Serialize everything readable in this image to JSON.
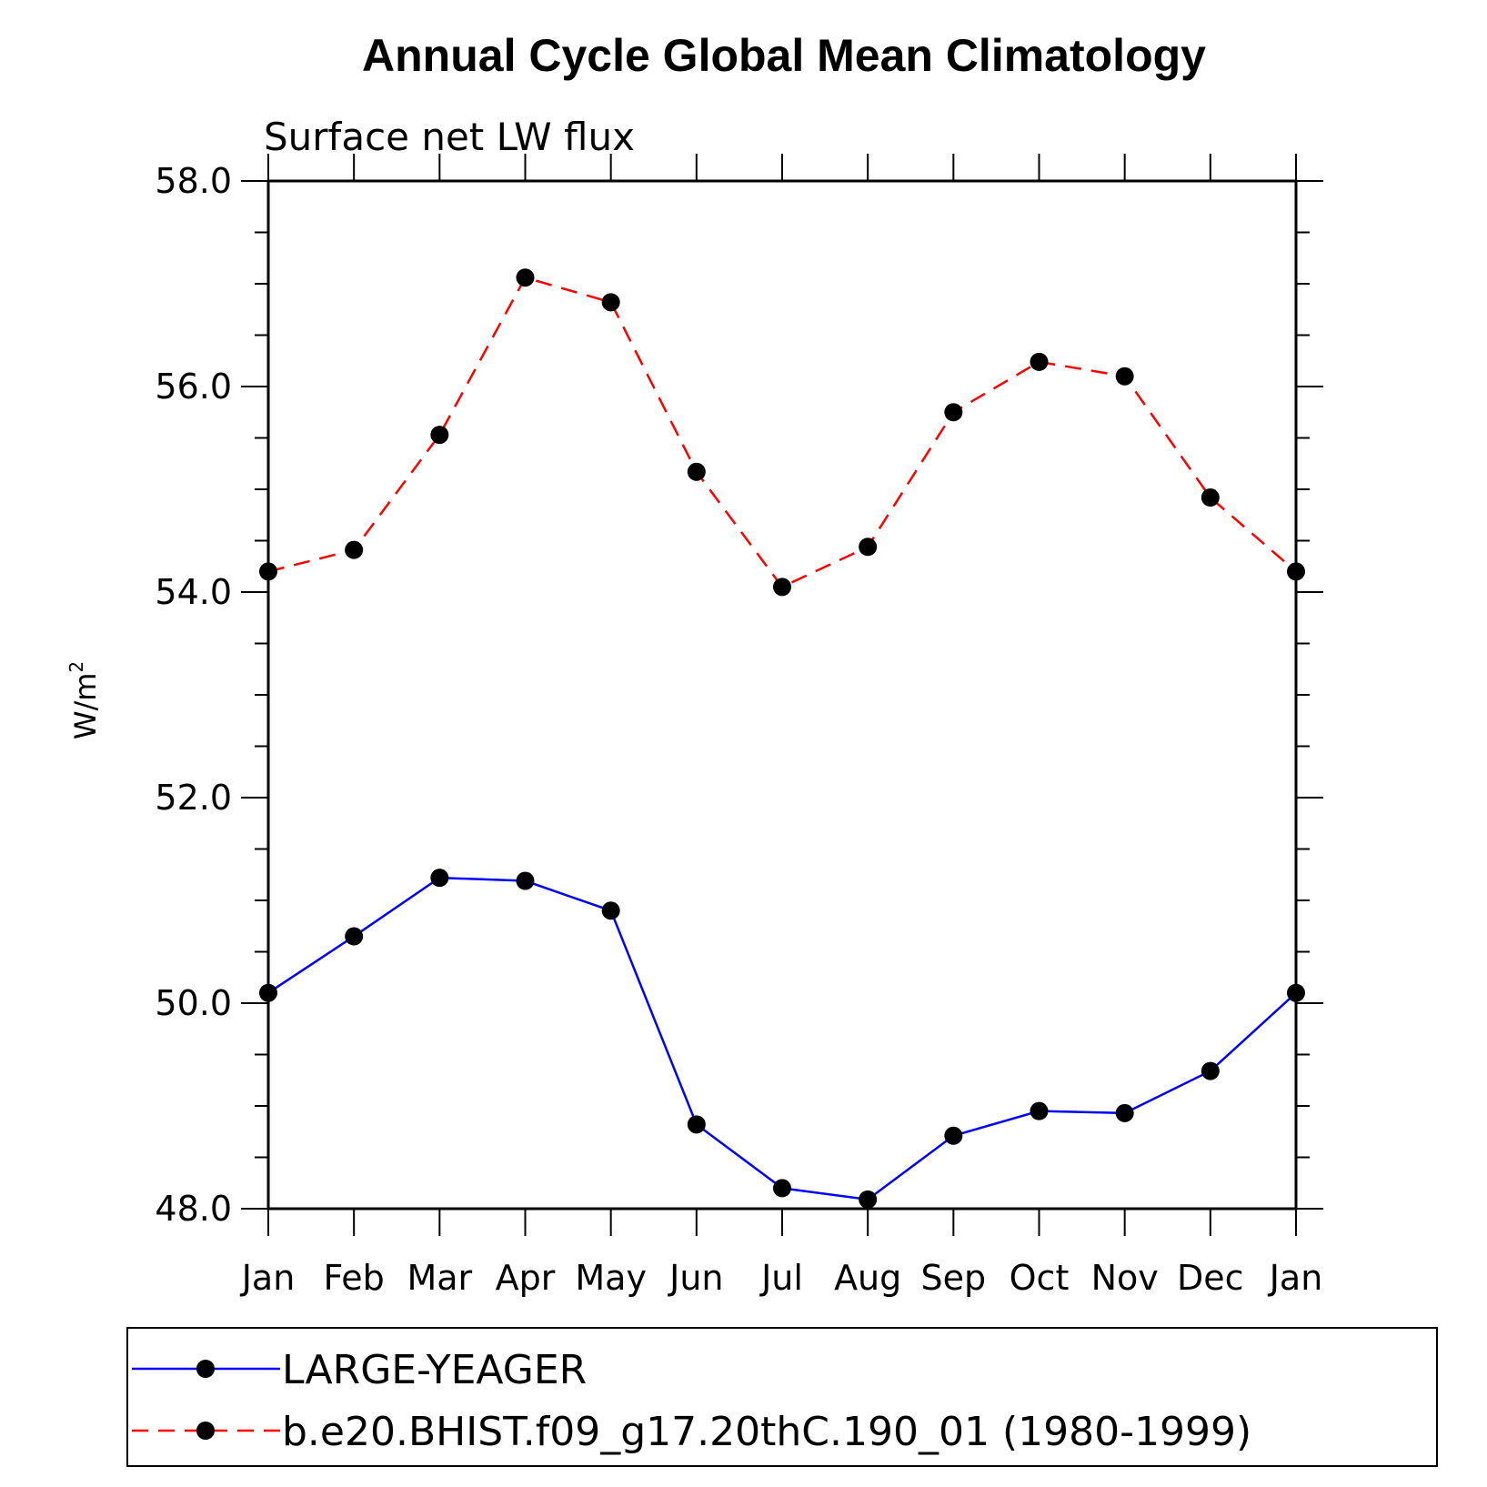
{
  "chart_data": {
    "type": "line",
    "title": "Annual Cycle Global Mean Climatology",
    "subtitle": "Surface net LW flux",
    "ylabel": "W/m",
    "ylabel_sup": "2",
    "xlabel": "",
    "ylim": [
      48.0,
      58.0
    ],
    "yticks": [
      "48.0",
      "50.0",
      "52.0",
      "54.0",
      "56.0",
      "58.0"
    ],
    "categories": [
      "Jan",
      "Feb",
      "Mar",
      "Apr",
      "May",
      "Jun",
      "Jul",
      "Aug",
      "Sep",
      "Oct",
      "Nov",
      "Dec",
      "Jan"
    ],
    "grid": false,
    "legend_position": "bottom",
    "series": [
      {
        "name": "LARGE-YEAGER",
        "color": "#0000ff",
        "dash": "solid",
        "values": [
          50.1,
          50.65,
          51.22,
          51.19,
          50.9,
          48.82,
          48.2,
          48.09,
          48.71,
          48.95,
          48.93,
          49.34,
          50.1
        ]
      },
      {
        "name": "b.e20.BHIST.f09_g17.20thC.190_01 (1980-1999)",
        "color": "#ff0000",
        "dash": "dashed",
        "values": [
          54.2,
          54.41,
          55.53,
          57.06,
          56.82,
          55.17,
          54.05,
          54.44,
          55.75,
          56.24,
          56.1,
          54.92,
          54.2
        ]
      }
    ]
  }
}
